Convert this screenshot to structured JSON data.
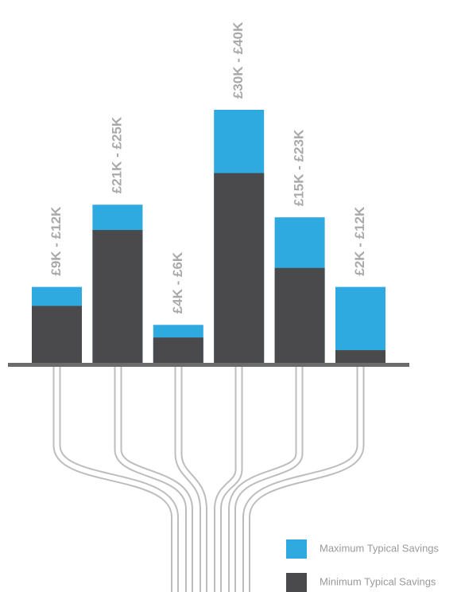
{
  "chart_data": {
    "type": "bar",
    "series": [
      {
        "name": "Maximum Typical Savings",
        "color": "#2eaae1",
        "values": [
          12,
          25,
          6,
          40,
          23,
          12
        ],
        "value_labels": [
          "£9K - £12K",
          "£21K - £25K",
          "£4K - £6K",
          "£30K - £40K",
          "£15K - £23K",
          "£2K - £12K"
        ]
      },
      {
        "name": "Minimum Typical Savings",
        "color": "#4a4a4c",
        "values": [
          9,
          21,
          4,
          30,
          15,
          2
        ]
      }
    ],
    "ylim": [
      0,
      40
    ]
  }
}
